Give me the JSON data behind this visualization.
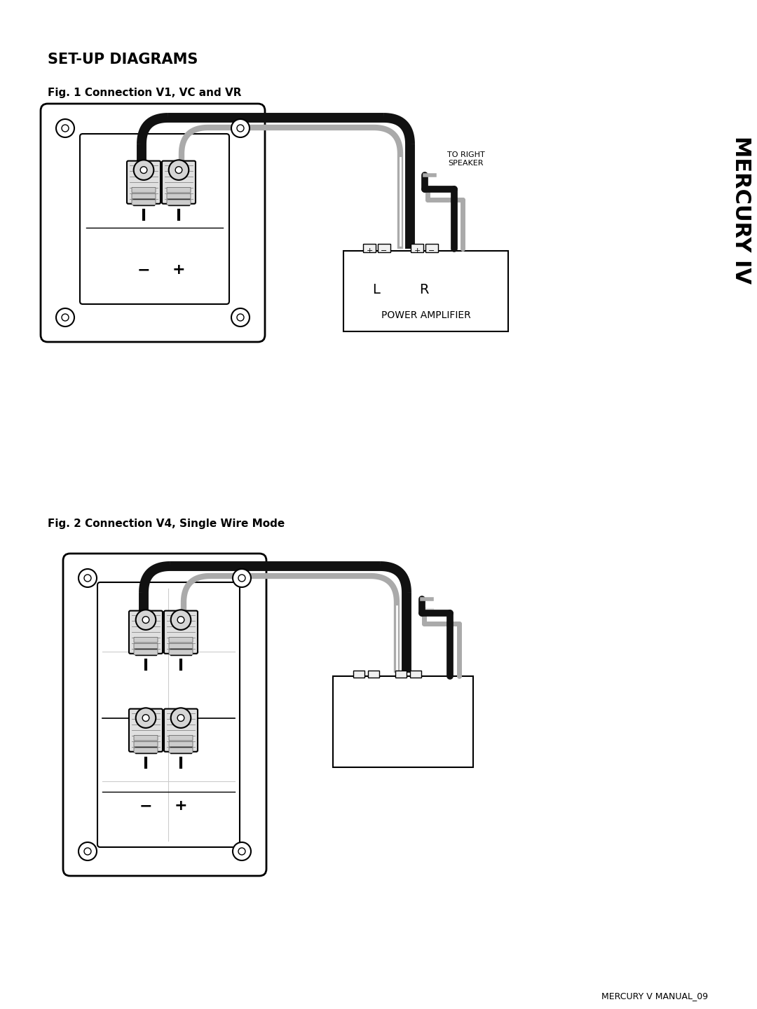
{
  "title": "SET-UP DIAGRAMS",
  "fig1_label": "Fig. 1 Connection V1, VC and VR",
  "fig2_label": "Fig. 2 Connection V4, Single Wire Mode",
  "footer": "MERCURY V MANUAL_09",
  "mercury_text": "MERCURY IV",
  "power_amp_text": "POWER AMPLIFIER",
  "to_right_speaker": "TO RIGHT\nSPEAKER",
  "bg_color": "#ffffff",
  "line_color": "#000000"
}
